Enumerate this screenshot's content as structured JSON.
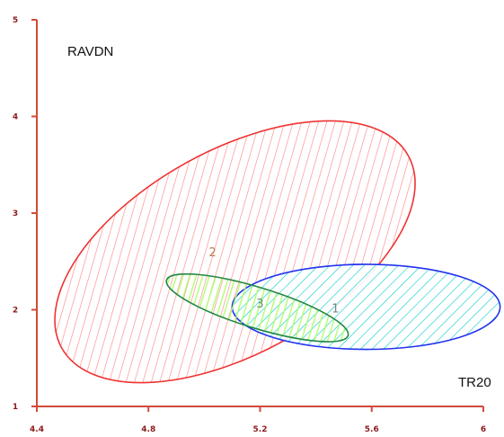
{
  "chart_data": {
    "type": "scatter",
    "title": "",
    "xlabel": "TR20",
    "ylabel": "RAVDN",
    "xlim": [
      4.4,
      6.0
    ],
    "ylim": [
      1,
      5
    ],
    "xticks": [
      4.4,
      4.8,
      5.2,
      5.6,
      6.0
    ],
    "xtick_labels": [
      "4.4",
      "4.8",
      "5.2",
      "5.6",
      "6"
    ],
    "yticks": [
      1,
      2,
      3,
      4,
      5
    ],
    "ytick_labels": [
      "1",
      "2",
      "3",
      "4",
      "5"
    ],
    "grid": false,
    "legend": "none",
    "axis_color": "#d04a3a",
    "tick_label_color": "#8b1a1a",
    "series": [
      {
        "name": "1",
        "shape": "ellipse",
        "center": [
          5.58,
          2.03
        ],
        "semi_axis_x": 0.48,
        "semi_axis_y": 0.44,
        "color": "#2233ee",
        "fill": "#00cccc",
        "hatch": "diagonal-down",
        "label_at": [
          5.47,
          2.02
        ],
        "label_color": "#6a8a8a"
      },
      {
        "name": "2",
        "shape": "ellipse",
        "center": [
          5.11,
          2.6
        ],
        "semi_axis_x": 0.71,
        "semi_axis_y": 1.05,
        "rotation_deg": -29,
        "color": "#ee3333",
        "fill": "#ff8888",
        "hatch": "diagonal-down",
        "label_at": [
          5.03,
          2.6
        ],
        "label_color": "#b87a4a"
      },
      {
        "name": "3",
        "shape": "ellipse",
        "center": [
          5.19,
          2.02
        ],
        "semi_axis_x": 0.34,
        "semi_axis_y": 0.21,
        "rotation_deg": 17,
        "color": "#228844",
        "fill": "#aaff66",
        "hatch": "vertical",
        "label_at": [
          5.2,
          2.07
        ],
        "label_color": "#6a8a6a"
      }
    ]
  }
}
